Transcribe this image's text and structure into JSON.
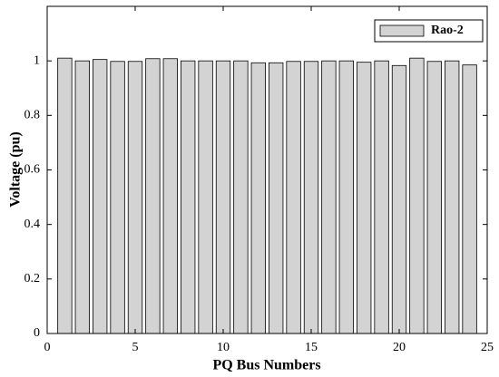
{
  "chart_data": {
    "type": "bar",
    "x_label": "PQ Bus Numbers",
    "y_label": "Voltage (pu)",
    "x": [
      1,
      2,
      3,
      4,
      5,
      6,
      7,
      8,
      9,
      10,
      11,
      12,
      13,
      14,
      15,
      16,
      17,
      18,
      19,
      20,
      21,
      22,
      23,
      24
    ],
    "series": [
      {
        "name": "Rao-2",
        "color": "#d3d3d3",
        "values": [
          1.01,
          1.0,
          1.005,
          0.998,
          0.998,
          1.008,
          1.008,
          1.0,
          1.0,
          1.0,
          1.0,
          0.993,
          0.993,
          0.998,
          0.998,
          1.0,
          1.0,
          0.995,
          1.0,
          0.983,
          1.01,
          0.998,
          1.0,
          0.985
        ]
      }
    ],
    "xlim": [
      0,
      25
    ],
    "xticks": [
      0,
      5,
      10,
      15,
      20,
      25
    ],
    "ylim": [
      0,
      1.2
    ],
    "yticks": [
      0,
      0.2,
      0.4,
      0.6,
      0.8,
      1
    ],
    "legend": "upper right",
    "grid": false
  }
}
